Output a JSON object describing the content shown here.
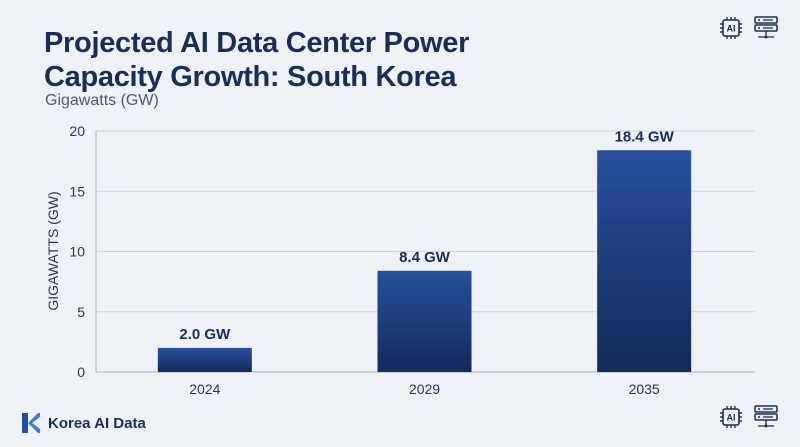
{
  "header": {
    "title_line1": "Projected AI Data Center Power",
    "title_line2": "Capacity Growth: South Korea",
    "subtitle": "Gigawatts (GW)"
  },
  "icons": {
    "top": [
      "ai-chip-icon",
      "server-rack-icon"
    ],
    "bottom": [
      "ai-chip-icon",
      "server-rack-icon"
    ],
    "chip_text": "AI"
  },
  "footer": {
    "brand": "Korea AI Data",
    "logo_icon": "k-logo-icon"
  },
  "colors": {
    "bar_top": "#284f9c",
    "bar_bottom": "#132a5a",
    "title": "#1b2d54",
    "grid": "#cdd4df",
    "logo": "#1f4fa0"
  },
  "chart_data": {
    "type": "bar",
    "categories": [
      "2024",
      "2029",
      "2035"
    ],
    "values": [
      2.0,
      8.4,
      18.4
    ],
    "data_labels": [
      "2.0 GW",
      "8.4 GW",
      "18.4 GW"
    ],
    "title": "Projected AI Data Center Power Capacity Growth: South Korea",
    "subtitle": "Gigawatts (GW)",
    "xlabel": "",
    "ylabel": "GIGAWATTS (GW)",
    "ylim": [
      0,
      20
    ],
    "yticks": [
      0,
      5,
      10,
      15,
      20
    ],
    "grid": true
  }
}
